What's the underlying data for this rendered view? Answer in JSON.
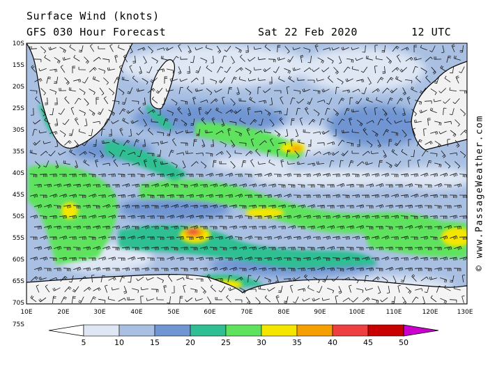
{
  "header": {
    "title": "Surface Wind (knots)",
    "subtitle": "GFS 030 Hour Forecast",
    "date": "Sat 22 Feb 2020",
    "time": "12 UTC"
  },
  "credit": "© www.PassageWeather.com",
  "axes": {
    "lat_labels": [
      "10S",
      "15S",
      "20S",
      "25S",
      "30S",
      "35S",
      "40S",
      "45S",
      "50S",
      "55S",
      "60S",
      "65S",
      "70S",
      "75S"
    ],
    "lon_labels": [
      "10E",
      "20E",
      "30E",
      "40E",
      "50E",
      "60E",
      "70E",
      "80E",
      "90E",
      "100E",
      "110E",
      "120E",
      "130E"
    ]
  },
  "colorbar": {
    "labels": [
      "5",
      "10",
      "15",
      "20",
      "25",
      "30",
      "35",
      "40",
      "45",
      "50"
    ],
    "colors": [
      "#ffffff",
      "#dfe7f4",
      "#a9c0e3",
      "#6f95d2",
      "#2fbf92",
      "#5fe35f",
      "#f5e600",
      "#f5a000",
      "#ee4040",
      "#c80000",
      "#cc00cc"
    ]
  },
  "map_colors": {
    "land": "#f2f2f2",
    "ice": "#f4f4f4",
    "coast": "#000000"
  }
}
